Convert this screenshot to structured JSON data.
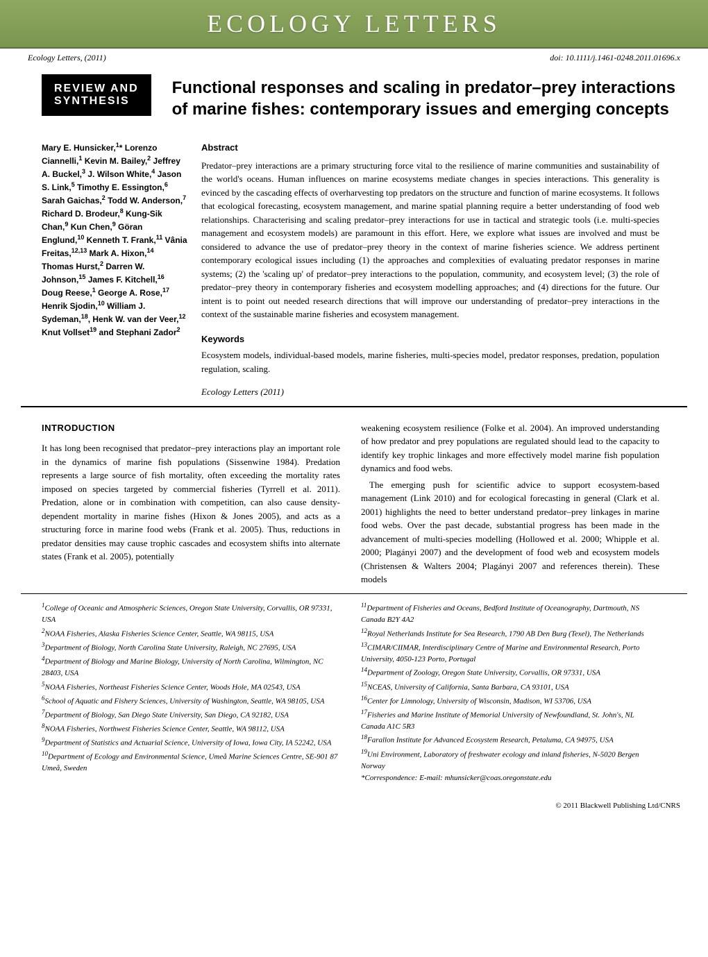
{
  "banner": {
    "journal_title": "ECOLOGY LETTERS"
  },
  "meta": {
    "citation": "Ecology Letters, (2011)",
    "doi": "doi: 10.1111/j.1461-0248.2011.01696.x"
  },
  "section_tag": {
    "line1": "REVIEW AND",
    "line2": "SYNTHESIS"
  },
  "title": "Functional responses and scaling in predator–prey interactions of marine fishes: contemporary issues and emerging concepts",
  "authors_html": "Mary E. Hunsicker,<sup>1</sup>* Lorenzo Ciannelli,<sup>1</sup> Kevin M. Bailey,<sup>2</sup> Jeffrey A. Buckel,<sup>3</sup> J. Wilson White,<sup>4</sup> Jason S. Link,<sup>5</sup> Timothy E. Essington,<sup>6</sup> Sarah Gaichas,<sup>2</sup> Todd W. Anderson,<sup>7</sup> Richard D. Brodeur,<sup>8</sup> Kung-Sik Chan,<sup>9</sup> Kun Chen,<sup>9</sup> Göran Englund,<sup>10</sup> Kenneth T. Frank,<sup>11</sup> Vânia Freitas,<sup>12,13</sup> Mark A. Hixon,<sup>14</sup> Thomas Hurst,<sup>2</sup> Darren W. Johnson,<sup>15</sup> James F. Kitchell,<sup>16</sup> Doug Reese,<sup>1</sup> George A. Rose,<sup>17</sup> Henrik Sjodin,<sup>10</sup> William J. Sydeman,<sup>18</sup>, Henk W. van der Veer,<sup>12</sup> Knut Vollset<sup>19</sup> and Stephani Zador<sup>2</sup>",
  "abstract": {
    "heading": "Abstract",
    "text": "Predator–prey interactions are a primary structuring force vital to the resilience of marine communities and sustainability of the world's oceans. Human influences on marine ecosystems mediate changes in species interactions. This generality is evinced by the cascading effects of overharvesting top predators on the structure and function of marine ecosystems. It follows that ecological forecasting, ecosystem management, and marine spatial planning require a better understanding of food web relationships. Characterising and scaling predator–prey interactions for use in tactical and strategic tools (i.e. multi-species management and ecosystem models) are paramount in this effort. Here, we explore what issues are involved and must be considered to advance the use of predator–prey theory in the context of marine fisheries science. We address pertinent contemporary ecological issues including (1) the approaches and complexities of evaluating predator responses in marine systems; (2) the 'scaling up' of predator–prey interactions to the population, community, and ecosystem level; (3) the role of predator–prey theory in contemporary fisheries and ecosystem modelling approaches; and (4) directions for the future. Our intent is to point out needed research directions that will improve our understanding of predator–prey interactions in the context of the sustainable marine fisheries and ecosystem management.",
    "kw_heading": "Keywords",
    "keywords": "Ecosystem models, individual-based models, marine fisheries, multi-species model, predator responses, predation, population regulation, scaling.",
    "citation": "Ecology Letters (2011)"
  },
  "intro": {
    "heading": "INTRODUCTION",
    "p1": "It has long been recognised that predator–prey interactions play an important role in the dynamics of marine fish populations (Sissenwine 1984). Predation represents a large source of fish mortality, often exceeding the mortality rates imposed on species targeted by commercial fisheries (Tyrrell et al. 2011). Predation, alone or in combination with competition, can also cause density-dependent mortality in marine fishes (Hixon & Jones 2005), and acts as a structuring force in marine food webs (Frank et al. 2005). Thus, reductions in predator densities may cause trophic cascades and ecosystem shifts into alternate states (Frank et al. 2005), potentially",
    "p2": "weakening ecosystem resilience (Folke et al. 2004). An improved understanding of how predator and prey populations are regulated should lead to the capacity to identify key trophic linkages and more effectively model marine fish population dynamics and food webs.",
    "p3": "The emerging push for scientific advice to support ecosystem-based management (Link 2010) and for ecological forecasting in general (Clark et al. 2001) highlights the need to better understand predator–prey linkages in marine food webs. Over the past decade, substantial progress has been made in the advancement of multi-species modelling (Hollowed et al. 2000; Whipple et al. 2000; Plagányi 2007) and the development of food web and ecosystem models (Christensen & Walters 2004; Plagányi 2007 and references therein). These models"
  },
  "affiliations_left": [
    "<sup>1</sup>College of Oceanic and Atmospheric Sciences, Oregon State University, Corvallis, OR 97331, USA",
    "<sup>2</sup>NOAA Fisheries, Alaska Fisheries Science Center, Seattle, WA 98115, USA",
    "<sup>3</sup>Department of Biology, North Carolina State University, Raleigh, NC 27695, USA",
    "<sup>4</sup>Department of Biology and Marine Biology, University of North Carolina, Wilmington, NC 28403, USA",
    "<sup>5</sup>NOAA Fisheries, Northeast Fisheries Science Center, Woods Hole, MA 02543, USA",
    "<sup>6</sup>School of Aquatic and Fishery Sciences, University of Washington, Seattle, WA 98105, USA",
    "<sup>7</sup>Department of Biology, San Diego State University, San Diego, CA 92182, USA",
    "<sup>8</sup>NOAA Fisheries, Northwest Fisheries Science Center, Seattle, WA 98112, USA",
    "<sup>9</sup>Department of Statistics and Actuarial Science, University of Iowa, Iowa City, IA 52242, USA",
    "<sup>10</sup>Department of Ecology and Environmental Science, Umeå Marine Sciences Centre, SE-901 87 Umeå, Sweden"
  ],
  "affiliations_right": [
    "<sup>11</sup>Department of Fisheries and Oceans, Bedford Institute of Oceanography, Dartmouth, NS Canada B2Y 4A2",
    "<sup>12</sup>Royal Netherlands Institute for Sea Research, 1790 AB Den Burg (Texel), The Netherlands",
    "<sup>13</sup>CIMAR/CIIMAR, Interdisciplinary Centre of Marine and Environmental Research, Porto University, 4050-123 Porto, Portugal",
    "<sup>14</sup>Department of Zoology, Oregon State University, Corvallis, OR 97331, USA",
    "<sup>15</sup>NCEAS, University of California, Santa Barbara, CA 93101, USA",
    "<sup>16</sup>Center for Limnology, University of Wisconsin, Madison, WI 53706, USA",
    "<sup>17</sup>Fisheries and Marine Institute of Memorial University of Newfoundland, St. John's, NL Canada A1C 5R3",
    "<sup>18</sup>Farallon Institute for Advanced Ecosystem Research, Petaluma, CA 94975, USA",
    "<sup>19</sup>Uni Environment, Laboratory of freshwater ecology and inland fisheries, N-5020 Bergen Norway",
    "*Correspondence: E-mail: mhunsicker@coas.oregonstate.edu"
  ],
  "footer": "© 2011 Blackwell Publishing Ltd/CNRS",
  "colors": {
    "banner_bg": "#8fa85f",
    "banner_text": "#ffffff",
    "tag_bg": "#000000"
  }
}
